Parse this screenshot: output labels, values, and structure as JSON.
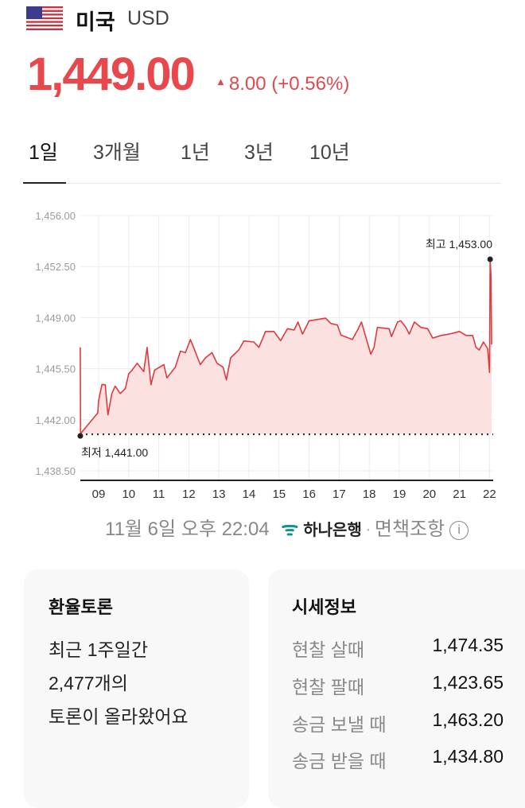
{
  "header": {
    "country": "미국",
    "currency": "USD",
    "flag_icon": "us-flag-icon",
    "price": "1,449.00",
    "change": "8.00 (+0.56%)",
    "change_direction": "up",
    "accent_color": "#e8474c"
  },
  "tabs": [
    {
      "label": "1일",
      "active": true
    },
    {
      "label": "3개월"
    },
    {
      "label": "1년"
    },
    {
      "label": "3년"
    },
    {
      "label": "10년"
    }
  ],
  "chart_data": {
    "type": "area",
    "xlabel": "",
    "ylabel": "",
    "ylim": [
      1438.5,
      1456
    ],
    "y_ticks": [
      "1,456.00",
      "1,452.50",
      "1,449.00",
      "1,445.50",
      "1,442.00",
      "1,438.50"
    ],
    "y_tick_values": [
      1456,
      1452.5,
      1449,
      1445.5,
      1442,
      1438.5
    ],
    "x_ticks": [
      "09",
      "10",
      "11",
      "12",
      "13",
      "14",
      "15",
      "16",
      "17",
      "18",
      "19",
      "20",
      "21",
      "22"
    ],
    "x_tick_values": [
      9,
      10,
      11,
      12,
      13,
      14,
      15,
      16,
      17,
      18,
      19,
      20,
      21,
      22
    ],
    "grid": true,
    "line_color": "#e03a3e",
    "fill_color": "#fce1e1",
    "max_label": "최고 1,453.00",
    "max_value": 1453.0,
    "min_label": "최저 1,441.00",
    "min_value": 1441.0,
    "series": [
      {
        "x": [
          8.39,
          8.4,
          8.97,
          9.0,
          9.11,
          9.22,
          9.31,
          9.44,
          9.55,
          9.72,
          9.89,
          10.0,
          10.11,
          10.28,
          10.5,
          10.61,
          10.74,
          10.86,
          11.17,
          11.27,
          11.55,
          11.72,
          11.89,
          12.05,
          12.16,
          12.38,
          12.55,
          12.77,
          12.94,
          13.14,
          13.25,
          13.39,
          13.66,
          13.83,
          14.16,
          14.33,
          14.55,
          14.83,
          15.05,
          15.28,
          15.5,
          15.63,
          15.78,
          16.0,
          16.55,
          16.72,
          16.94,
          17.06,
          17.44,
          17.61,
          17.74,
          17.88,
          18.05,
          18.16,
          18.27,
          18.66,
          18.74,
          18.94,
          19.05,
          19.22,
          19.33,
          19.5,
          19.72,
          19.94,
          20.11,
          20.39,
          20.66,
          21.0,
          21.22,
          21.44,
          21.55,
          21.66,
          21.8,
          21.94,
          22.0,
          22.02,
          22.05,
          22.06,
          22.07
        ],
        "y": [
          1446.96,
          1441.05,
          1442.47,
          1443.33,
          1444.42,
          1444.4,
          1442.33,
          1443.8,
          1444.3,
          1443.8,
          1444.15,
          1445.15,
          1445.4,
          1445.87,
          1445.3,
          1446.96,
          1444.4,
          1445.4,
          1445.78,
          1444.87,
          1445.6,
          1446.7,
          1446.6,
          1447.5,
          1446.96,
          1445.78,
          1446.24,
          1446.6,
          1445.87,
          1445.6,
          1444.73,
          1446.24,
          1446.78,
          1447.4,
          1447.33,
          1446.96,
          1448.05,
          1448.05,
          1447.42,
          1448.24,
          1448.15,
          1448.7,
          1447.87,
          1448.78,
          1448.96,
          1448.6,
          1448.5,
          1447.8,
          1447.5,
          1448.15,
          1448.7,
          1447.7,
          1446.5,
          1446.96,
          1448.33,
          1448.24,
          1447.7,
          1448.7,
          1448.78,
          1448.33,
          1447.87,
          1448.7,
          1448.33,
          1448.24,
          1447.6,
          1447.78,
          1447.87,
          1448.05,
          1447.78,
          1447.78,
          1446.96,
          1446.78,
          1447.33,
          1446.87,
          1445.24,
          1452.96,
          1451.8,
          1448.96,
          1447.15
        ]
      }
    ]
  },
  "footer": {
    "timestamp": "11월 6일 오후 22:04",
    "bank": "하나은행",
    "bank_icon": "hana-bank-logo-icon",
    "disclaimer": "면책조항",
    "info_icon": "info-icon"
  },
  "debate": {
    "title": "환율토론",
    "lines": [
      "최근 1주일간",
      "2,477개의",
      "토론이 올라왔어요"
    ]
  },
  "market_info": {
    "title": "시세정보",
    "rows": [
      {
        "label": "현찰 살때",
        "value": "1,474.35"
      },
      {
        "label": "현찰 팔때",
        "value": "1,423.65"
      },
      {
        "label": "송금 보낼 때",
        "value": "1,463.20"
      },
      {
        "label": "송금 받을 때",
        "value": "1,434.80"
      }
    ]
  }
}
